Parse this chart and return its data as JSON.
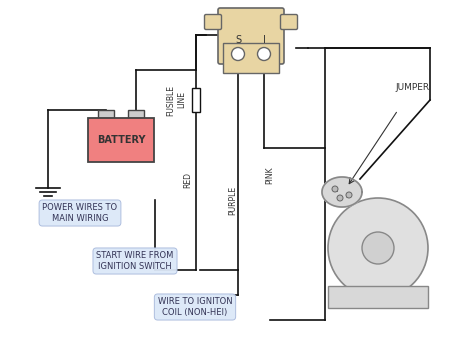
{
  "bg_color": "#ffffff",
  "battery_color": "#f08080",
  "battery_border": "#444444",
  "relay_color": "#e8d5a3",
  "relay_border": "#666666",
  "wire_color": "#111111",
  "label_bg": "#dce8f8",
  "label_text": "#333355",
  "labels": {
    "battery": "BATTERY",
    "power_wires": "POWER WIRES TO\nMAIN WIRING",
    "start_wire": "START WIRE FROM\nIGNITION SWITCH",
    "wire_coil": "WIRE TO IGNITON\nCOIL (NON-HEI)",
    "fusible_line": "FUSIBLE\nLINE",
    "red": "RED",
    "purple": "PURPLE",
    "pink": "PINK",
    "s_label": "S",
    "i_label": "I",
    "jumper": "JUMPER"
  },
  "figsize": [
    4.74,
    3.54
  ],
  "dpi": 100
}
